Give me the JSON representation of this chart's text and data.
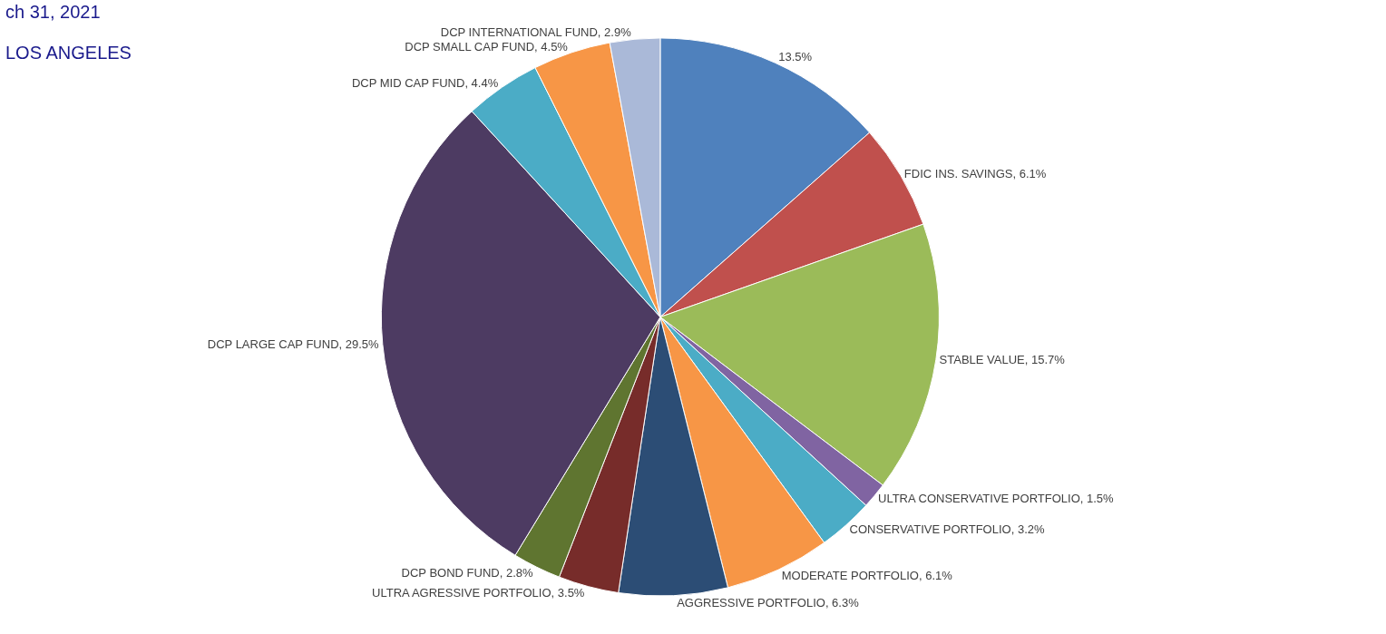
{
  "chart_data": {
    "type": "pie",
    "categories": [
      null,
      "FDIC INS. SAVINGS",
      "STABLE VALUE",
      "ULTRA CONSERVATIVE PORTFOLIO",
      "CONSERVATIVE PORTFOLIO",
      "MODERATE PORTFOLIO",
      "AGGRESSIVE PORTFOLIO",
      "ULTRA AGRESSIVE PORTFOLIO",
      "DCP BOND FUND",
      "DCP LARGE CAP FUND",
      "DCP MID CAP FUND",
      "DCP SMALL CAP FUND",
      "DCP INTERNATIONAL FUND"
    ],
    "values": [
      13.5,
      6.1,
      15.7,
      1.5,
      3.2,
      6.1,
      6.3,
      3.5,
      2.8,
      29.5,
      4.4,
      4.5,
      2.9
    ],
    "colors": [
      "#4f81bd",
      "#c0504d",
      "#9bbb59",
      "#8064a2",
      "#4bacc6",
      "#f79646",
      "#2c4d75",
      "#772c2a",
      "#5f7530",
      "#4d3b62",
      "#4bacc6",
      "#f79646",
      "#aab9d8"
    ],
    "value_labels": [
      "13.5%",
      "6.1%",
      "15.7%",
      "1.5%",
      "3.2%",
      "6.1%",
      "6.3%",
      "3.5%",
      "2.8%",
      "29.5%",
      "4.4%",
      "4.5%",
      "2.9%"
    ],
    "legend": false,
    "annotations": [
      "ch 31, 2021",
      "LOS ANGELES"
    ]
  }
}
